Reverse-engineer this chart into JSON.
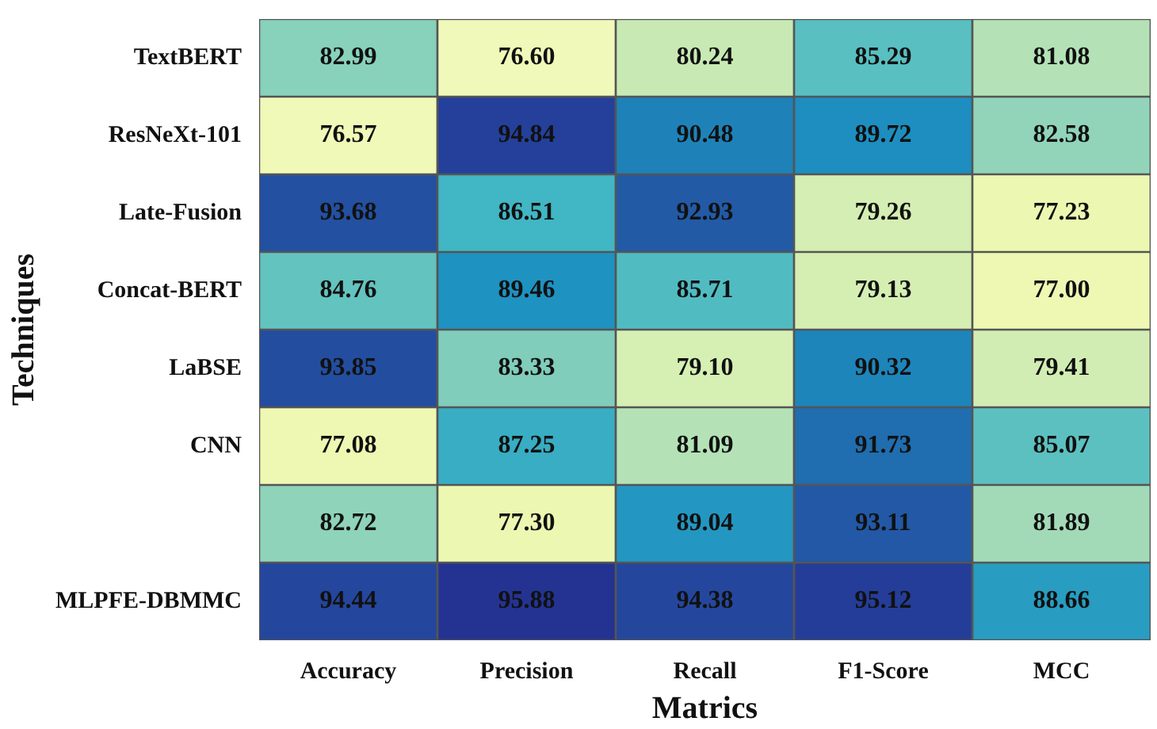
{
  "chart_data": {
    "type": "heatmap",
    "xlabel": "Matrics",
    "ylabel": "Techniques",
    "categories": [
      "Accuracy",
      "Precision",
      "Recall",
      "F1-Score",
      "MCC"
    ],
    "y_categories": [
      "TextBERT",
      "ResNeXt-101",
      "Late-Fusion",
      "Concat-BERT",
      "LaBSE",
      "CNN",
      null,
      "MLPFE-DBMMC"
    ],
    "cells": [
      [
        82.99,
        76.6,
        80.24,
        85.29,
        81.08
      ],
      [
        76.57,
        94.84,
        90.48,
        89.72,
        82.58
      ],
      [
        93.68,
        86.51,
        92.93,
        79.26,
        77.23
      ],
      [
        84.76,
        89.46,
        85.71,
        79.13,
        77.0
      ],
      [
        93.85,
        83.33,
        79.1,
        90.32,
        79.41
      ],
      [
        77.08,
        87.25,
        81.09,
        91.73,
        85.07
      ],
      [
        82.72,
        77.3,
        89.04,
        93.11,
        81.89
      ],
      [
        94.44,
        95.88,
        94.38,
        95.12,
        88.66
      ]
    ],
    "cell_labels": [
      [
        "82.99",
        "76.60",
        "80.24",
        "85.29",
        "81.08"
      ],
      [
        "76.57",
        "94.84",
        "90.48",
        "89.72",
        "82.58"
      ],
      [
        "93.68",
        "86.51",
        "92.93",
        "79.26",
        "77.23"
      ],
      [
        "84.76",
        "89.46",
        "85.71",
        "79.13",
        "77.00"
      ],
      [
        "93.85",
        "83.33",
        "79.10",
        "90.32",
        "79.41"
      ],
      [
        "77.08",
        "87.25",
        "81.09",
        "91.73",
        "85.07"
      ],
      [
        "82.72",
        "77.30",
        "89.04",
        "93.11",
        "81.89"
      ],
      [
        "94.44",
        "95.88",
        "94.38",
        "95.12",
        "88.66"
      ]
    ]
  }
}
